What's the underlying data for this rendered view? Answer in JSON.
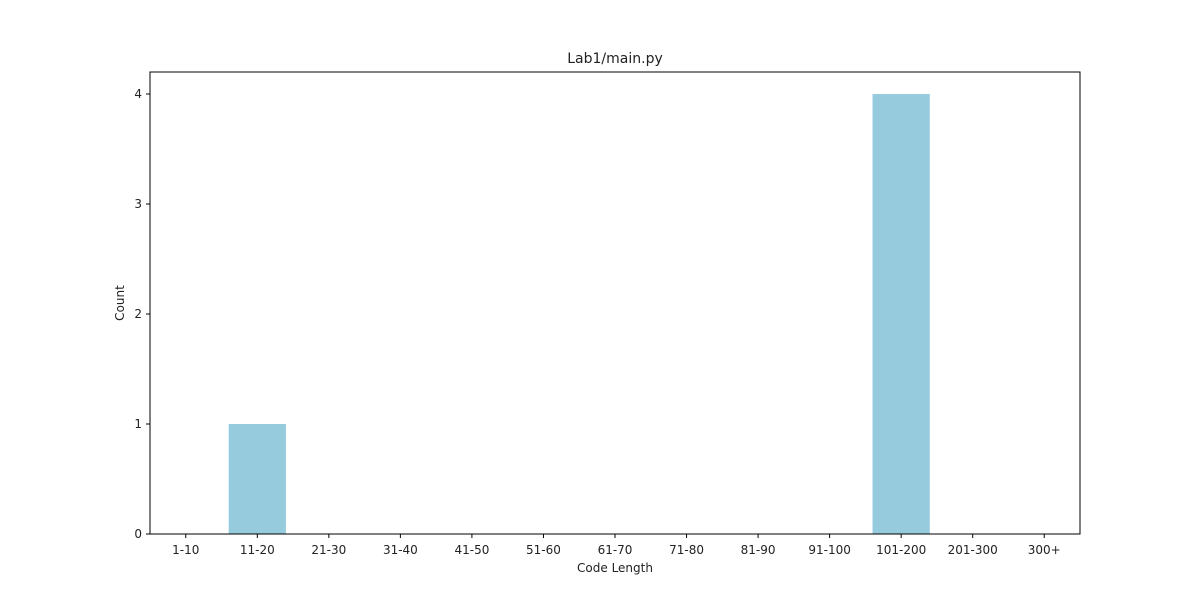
{
  "chart_data": {
    "type": "bar",
    "title": "Lab1/main.py",
    "xlabel": "Code Length",
    "ylabel": "Count",
    "categories": [
      "1-10",
      "11-20",
      "21-30",
      "31-40",
      "41-50",
      "51-60",
      "61-70",
      "71-80",
      "81-90",
      "91-100",
      "101-200",
      "201-300",
      "300+"
    ],
    "values": [
      0,
      1,
      0,
      0,
      0,
      0,
      0,
      0,
      0,
      0,
      4,
      0,
      0
    ],
    "ylim": [
      0,
      4.2
    ],
    "yticks": [
      0,
      1,
      2,
      3,
      4
    ],
    "grid": false,
    "bar_color": "#96cadd"
  }
}
